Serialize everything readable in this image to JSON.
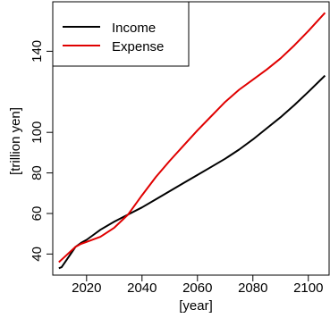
{
  "chart_data": {
    "type": "line",
    "xlabel": "[year]",
    "ylabel": "[trillion yen]",
    "xlim": [
      2007.8,
      2107.5
    ],
    "ylim": [
      29.6,
      164.4
    ],
    "x_ticks": [
      2020,
      2040,
      2060,
      2080,
      2100
    ],
    "y_ticks": [
      40,
      60,
      80,
      100,
      140
    ],
    "grid": false,
    "legend_position": "top-left",
    "series": [
      {
        "name": "Income",
        "color": "#000000",
        "points": [
          [
            2010,
            33
          ],
          [
            2011,
            33.5
          ],
          [
            2012,
            35.5
          ],
          [
            2014,
            39.5
          ],
          [
            2016,
            43.5
          ],
          [
            2018,
            45.5
          ],
          [
            2020,
            47
          ],
          [
            2022,
            49
          ],
          [
            2025,
            52
          ],
          [
            2030,
            56
          ],
          [
            2035,
            59.5
          ],
          [
            2040,
            63
          ],
          [
            2045,
            67
          ],
          [
            2050,
            71
          ],
          [
            2055,
            75
          ],
          [
            2060,
            79
          ],
          [
            2065,
            83
          ],
          [
            2070,
            87
          ],
          [
            2075,
            91.5
          ],
          [
            2080,
            96.5
          ],
          [
            2085,
            102
          ],
          [
            2090,
            107.5
          ],
          [
            2095,
            113.5
          ],
          [
            2100,
            120
          ],
          [
            2106,
            128
          ]
        ]
      },
      {
        "name": "Expense",
        "color": "#e00000",
        "points": [
          [
            2010,
            36
          ],
          [
            2012,
            38.5
          ],
          [
            2014,
            41
          ],
          [
            2016,
            43.5
          ],
          [
            2018,
            45
          ],
          [
            2020,
            46
          ],
          [
            2025,
            48.5
          ],
          [
            2030,
            53
          ],
          [
            2035,
            59.5
          ],
          [
            2040,
            69
          ],
          [
            2045,
            78
          ],
          [
            2050,
            86
          ],
          [
            2055,
            93.5
          ],
          [
            2060,
            101
          ],
          [
            2065,
            108
          ],
          [
            2070,
            115
          ],
          [
            2075,
            121
          ],
          [
            2080,
            126
          ],
          [
            2085,
            131
          ],
          [
            2090,
            136.5
          ],
          [
            2095,
            143
          ],
          [
            2100,
            150
          ],
          [
            2106,
            159
          ]
        ]
      }
    ]
  }
}
